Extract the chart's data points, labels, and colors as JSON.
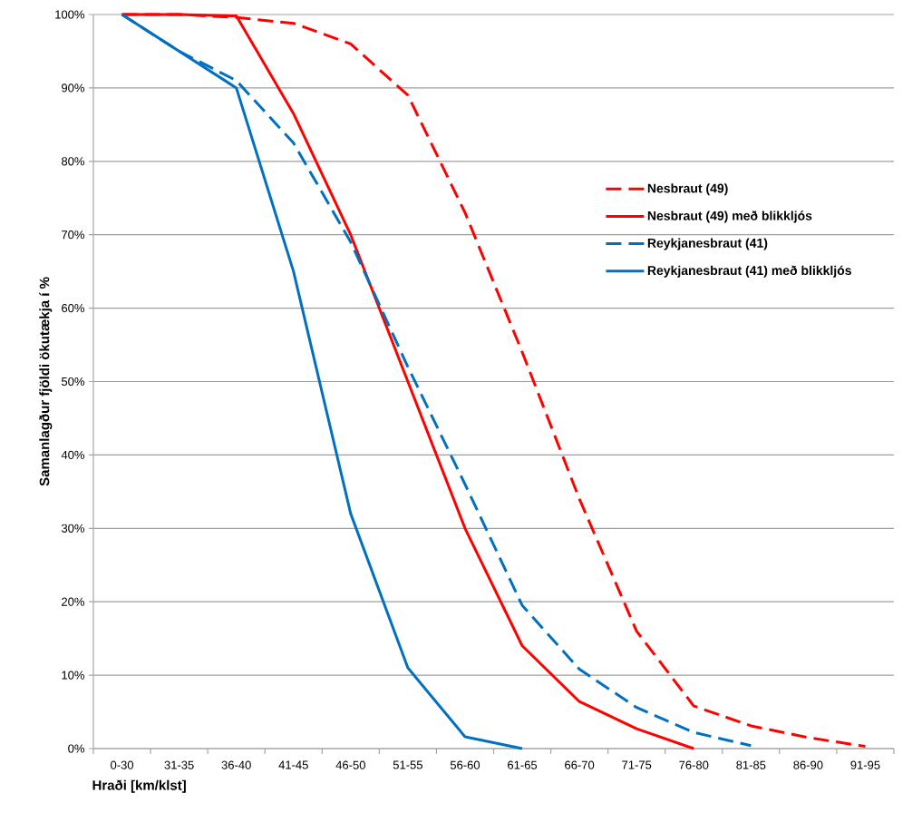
{
  "chart_data": {
    "type": "line",
    "xlabel": "Hraði [km/klst]",
    "ylabel": "Samanlagður fjöldi ökutækja í %",
    "categories": [
      "0-30",
      "31-35",
      "36-40",
      "41-45",
      "46-50",
      "51-55",
      "56-60",
      "61-65",
      "66-70",
      "71-75",
      "76-80",
      "81-85",
      "86-90",
      "91-95"
    ],
    "series": [
      {
        "name": "Nesbraut (49)",
        "color": "#ff0000",
        "line_style": "dashed",
        "values": [
          100,
          100,
          99.6,
          98.8,
          96,
          89,
          73,
          54,
          34,
          16,
          5.8,
          3.1,
          1.5,
          0.3
        ]
      },
      {
        "name": "Nesbraut (49) með blikkljós",
        "color": "#ff0000",
        "line_style": "solid",
        "values": [
          100,
          100,
          99.8,
          86.5,
          70,
          50,
          30,
          14,
          6.4,
          2.7,
          0,
          null,
          null,
          null
        ]
      },
      {
        "name": "Reykjanesbraut (41)",
        "color": "#0070c0",
        "line_style": "dashed",
        "values": [
          100,
          95,
          91,
          82.5,
          69,
          52,
          36,
          19.5,
          10.8,
          5.6,
          2.2,
          0.4,
          null,
          null
        ]
      },
      {
        "name": "Reykjanesbraut (41) með blikkljós",
        "color": "#0070c0",
        "line_style": "solid",
        "values": [
          100,
          95,
          90,
          65,
          32,
          11,
          1.6,
          0,
          null,
          null,
          null,
          null,
          null,
          null
        ]
      }
    ],
    "ylim": [
      0,
      100
    ],
    "yticks": [
      {
        "value": 0,
        "label": "0%"
      },
      {
        "value": 10,
        "label": "10%"
      },
      {
        "value": 20,
        "label": "20%"
      },
      {
        "value": 30,
        "label": "30%"
      },
      {
        "value": 40,
        "label": "40%"
      },
      {
        "value": 50,
        "label": "50%"
      },
      {
        "value": 60,
        "label": "60%"
      },
      {
        "value": 70,
        "label": "70%"
      },
      {
        "value": 80,
        "label": "80%"
      },
      {
        "value": 90,
        "label": "90%"
      },
      {
        "value": 100,
        "label": "100%"
      }
    ],
    "grid": "y",
    "legend": "right",
    "marker": "none"
  }
}
